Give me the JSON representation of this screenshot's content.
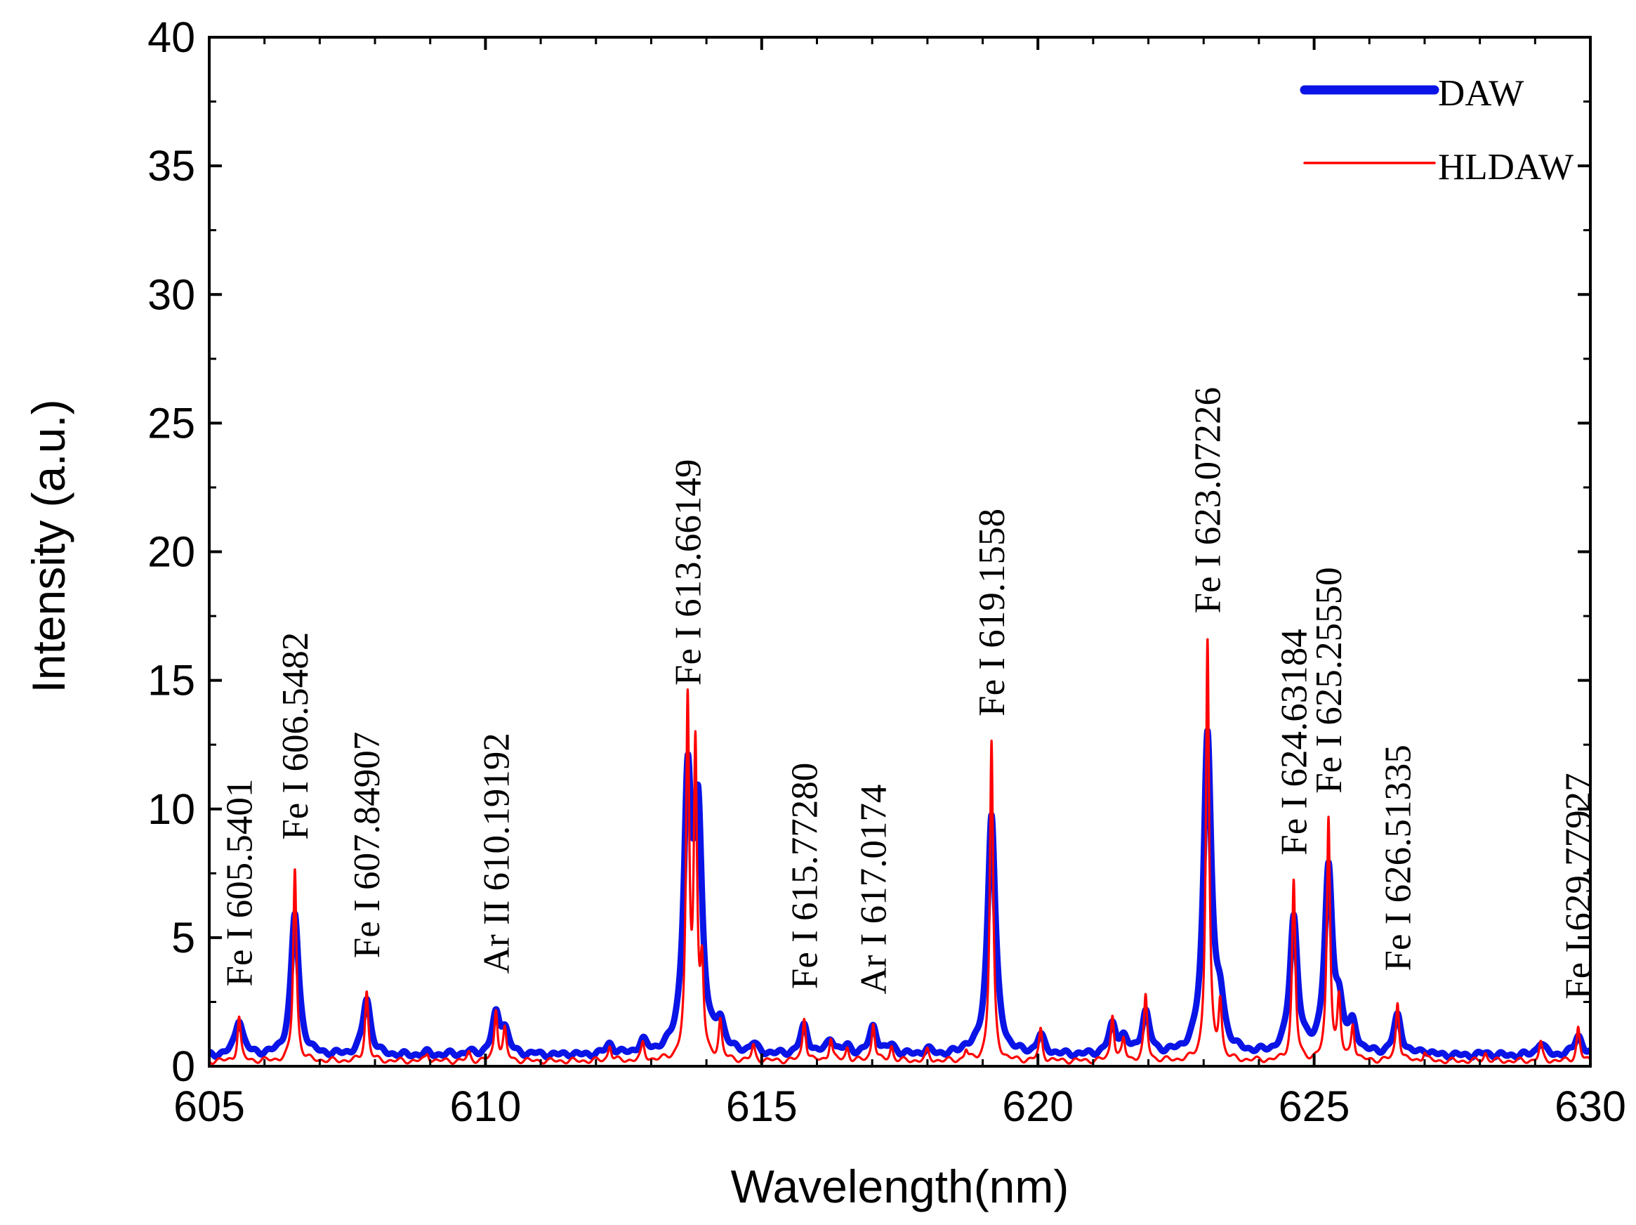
{
  "chart_data": {
    "type": "line",
    "title": "",
    "xlabel": "Wavelength(nm)",
    "ylabel": "Intensity (a.u.)",
    "xlim": [
      605,
      630
    ],
    "ylim": [
      0,
      40
    ],
    "x_ticks": [
      "605",
      "610",
      "615",
      "620",
      "625",
      "630"
    ],
    "y_ticks": [
      "0",
      "5",
      "10",
      "15",
      "20",
      "25",
      "30",
      "35",
      "40"
    ],
    "grid": false,
    "legend_position": "top-right",
    "colors": {
      "DAW": "#0a14e6",
      "HLDAW": "#ff0000"
    },
    "series": [
      {
        "name": "DAW",
        "baseline": 0.4,
        "peaks": [
          {
            "x": 605.54,
            "y": 1.8
          },
          {
            "x": 606.55,
            "y": 5.9
          },
          {
            "x": 607.85,
            "y": 2.6
          },
          {
            "x": 608.95,
            "y": 0.5
          },
          {
            "x": 609.4,
            "y": 0.45
          },
          {
            "x": 609.7,
            "y": 0.5
          },
          {
            "x": 610.19,
            "y": 1.9
          },
          {
            "x": 610.35,
            "y": 1.3
          },
          {
            "x": 610.9,
            "y": 0.45
          },
          {
            "x": 611.5,
            "y": 0.45
          },
          {
            "x": 612.25,
            "y": 0.8
          },
          {
            "x": 612.85,
            "y": 0.85
          },
          {
            "x": 613.66,
            "y": 10.5
          },
          {
            "x": 613.85,
            "y": 9.2
          },
          {
            "x": 614.25,
            "y": 1.5
          },
          {
            "x": 614.85,
            "y": 0.75
          },
          {
            "x": 615.77,
            "y": 1.5
          },
          {
            "x": 616.25,
            "y": 1.0
          },
          {
            "x": 616.55,
            "y": 0.7
          },
          {
            "x": 617.02,
            "y": 1.5
          },
          {
            "x": 617.35,
            "y": 0.75
          },
          {
            "x": 618.0,
            "y": 0.6
          },
          {
            "x": 618.7,
            "y": 0.6
          },
          {
            "x": 619.16,
            "y": 9.8
          },
          {
            "x": 620.05,
            "y": 1.1
          },
          {
            "x": 621.35,
            "y": 1.5
          },
          {
            "x": 621.55,
            "y": 0.95
          },
          {
            "x": 621.95,
            "y": 2.0
          },
          {
            "x": 623.07,
            "y": 12.9
          },
          {
            "x": 623.3,
            "y": 2.0
          },
          {
            "x": 624.63,
            "y": 5.7
          },
          {
            "x": 625.26,
            "y": 7.4
          },
          {
            "x": 625.45,
            "y": 1.9
          },
          {
            "x": 625.7,
            "y": 1.4
          },
          {
            "x": 626.51,
            "y": 1.9
          },
          {
            "x": 627.0,
            "y": 0.55
          },
          {
            "x": 628.1,
            "y": 0.5
          },
          {
            "x": 629.1,
            "y": 0.9
          },
          {
            "x": 629.78,
            "y": 1.2
          }
        ]
      },
      {
        "name": "HLDAW",
        "baseline": 0.2,
        "peaks": [
          {
            "x": 605.54,
            "y": 1.9
          },
          {
            "x": 606.55,
            "y": 7.7
          },
          {
            "x": 607.85,
            "y": 2.9
          },
          {
            "x": 608.95,
            "y": 0.5
          },
          {
            "x": 609.7,
            "y": 0.5
          },
          {
            "x": 610.19,
            "y": 2.2
          },
          {
            "x": 610.35,
            "y": 1.4
          },
          {
            "x": 612.25,
            "y": 0.8
          },
          {
            "x": 612.85,
            "y": 0.85
          },
          {
            "x": 613.66,
            "y": 13.8
          },
          {
            "x": 613.8,
            "y": 12.0
          },
          {
            "x": 613.92,
            "y": 3.5
          },
          {
            "x": 614.25,
            "y": 1.7
          },
          {
            "x": 614.85,
            "y": 0.75
          },
          {
            "x": 615.77,
            "y": 1.9
          },
          {
            "x": 616.25,
            "y": 1.1
          },
          {
            "x": 616.55,
            "y": 0.7
          },
          {
            "x": 617.02,
            "y": 1.7
          },
          {
            "x": 617.35,
            "y": 0.75
          },
          {
            "x": 618.0,
            "y": 0.6
          },
          {
            "x": 618.7,
            "y": 0.6
          },
          {
            "x": 619.16,
            "y": 12.6
          },
          {
            "x": 620.05,
            "y": 1.4
          },
          {
            "x": 621.35,
            "y": 2.0
          },
          {
            "x": 621.55,
            "y": 1.0
          },
          {
            "x": 621.95,
            "y": 2.7
          },
          {
            "x": 623.07,
            "y": 16.6
          },
          {
            "x": 623.3,
            "y": 2.4
          },
          {
            "x": 624.63,
            "y": 7.2
          },
          {
            "x": 625.26,
            "y": 9.6
          },
          {
            "x": 625.45,
            "y": 2.5
          },
          {
            "x": 625.7,
            "y": 1.6
          },
          {
            "x": 626.51,
            "y": 2.5
          },
          {
            "x": 627.0,
            "y": 0.55
          },
          {
            "x": 628.1,
            "y": 0.5
          },
          {
            "x": 629.1,
            "y": 0.9
          },
          {
            "x": 629.78,
            "y": 1.5
          }
        ]
      }
    ],
    "annotations": [
      {
        "text": "Fe I 605.5401",
        "x": 605.54,
        "y": 3.1
      },
      {
        "text": "Fe I 606.5482",
        "x": 606.55,
        "y": 8.8
      },
      {
        "text": "Fe I 607.84907",
        "x": 607.85,
        "y": 4.2
      },
      {
        "text": "Ar II 610.19192",
        "x": 610.19,
        "y": 3.6
      },
      {
        "text": "Fe I 613.66149",
        "x": 613.66,
        "y": 14.8
      },
      {
        "text": "Fe I 615.77280",
        "x": 615.77,
        "y": 3.0
      },
      {
        "text": "Ar I 617.0174",
        "x": 617.02,
        "y": 2.8
      },
      {
        "text": "Fe I 619.1558",
        "x": 619.16,
        "y": 13.6
      },
      {
        "text": "Fe I 623.07226",
        "x": 623.07,
        "y": 17.6
      },
      {
        "text": "Fe I 624.63184",
        "x": 624.63,
        "y": 8.2
      },
      {
        "text": "Fe I 625.25550",
        "x": 625.26,
        "y": 10.6
      },
      {
        "text": "Fe I 626.51335",
        "x": 626.51,
        "y": 3.7
      },
      {
        "text": "Fe I 629.77927",
        "x": 629.78,
        "y": 2.6
      }
    ]
  }
}
